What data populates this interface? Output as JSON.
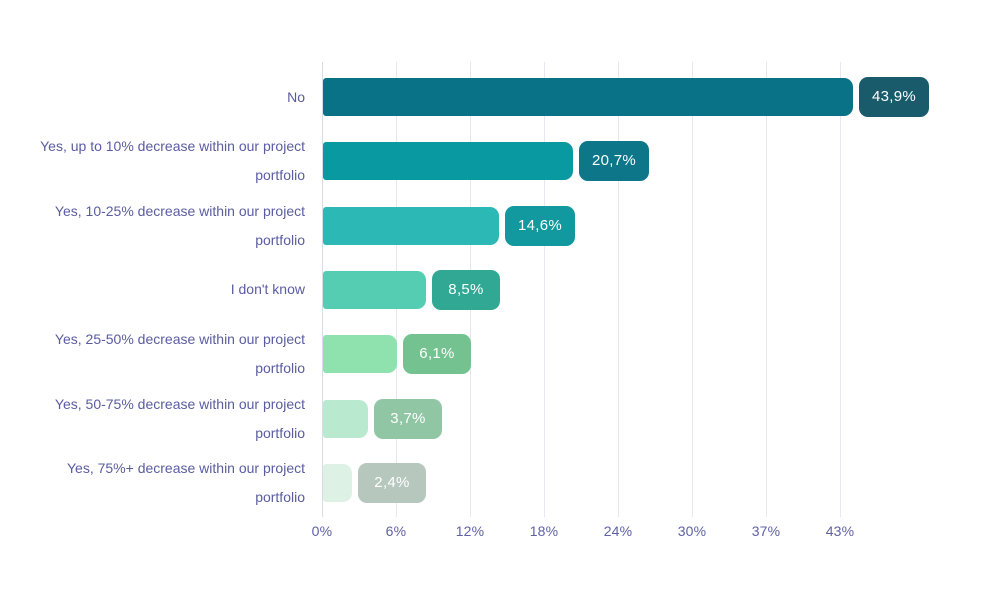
{
  "chart_data": {
    "type": "bar",
    "orientation": "horizontal",
    "title": "",
    "xlabel": "",
    "ylabel": "",
    "categories": [
      "No",
      "Yes, up to 10% decrease within our project portfolio",
      "Yes, 10-25% decrease within our project portfolio",
      "I don't know",
      "Yes, 25-50% decrease within our project portfolio",
      "Yes, 50-75% decrease within our project portfolio",
      "Yes, 75%+ decrease within our project portfolio"
    ],
    "values": [
      43.9,
      20.7,
      14.6,
      8.5,
      6.1,
      3.7,
      2.4
    ],
    "value_labels": [
      "43,9%",
      "20,7%",
      "14,6%",
      "8,5%",
      "6,1%",
      "3,7%",
      "2,4%"
    ],
    "x_ticks": [
      "0%",
      "6%",
      "12%",
      "18%",
      "24%",
      "30%",
      "37%",
      "43%"
    ],
    "xlim": [
      0,
      53
    ],
    "grid": "vertical",
    "legend": "none",
    "bar_colors": [
      "#0a7287",
      "#0999a1",
      "#2cb8b4",
      "#55cdb2",
      "#8fe1ae",
      "#b9e9cf",
      "#def1e5"
    ],
    "badge_colors": [
      "#195b6b",
      "#0d7689",
      "#12989f",
      "#31a893",
      "#74c290",
      "#90c6a4",
      "#b6c8bd"
    ],
    "colors": {
      "background": "#ffffff",
      "label_text": "#5a5ca1",
      "tick_text": "#5f61a5",
      "badge_text": "#ffffff",
      "gridline": "#e6e7f0",
      "axis_line": "#d9dbe8"
    }
  }
}
